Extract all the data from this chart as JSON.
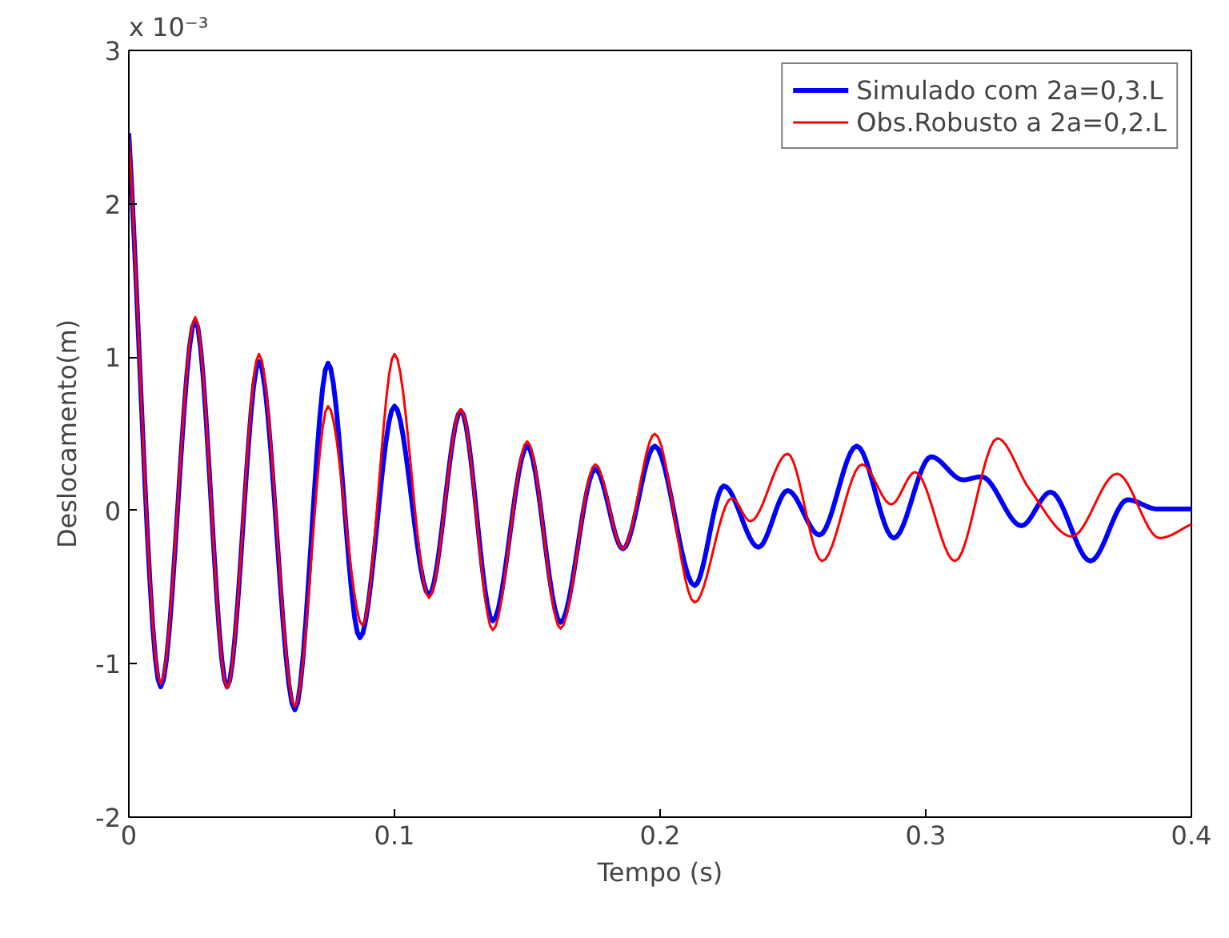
{
  "chart_data": {
    "type": "line",
    "xlabel": "Tempo (s)",
    "ylabel": "Deslocamento(m)",
    "annotations": [
      "x 10⁻³"
    ],
    "xlim": [
      0,
      0.4
    ],
    "ylim": [
      -2,
      3
    ],
    "xticks": [
      0,
      0.1,
      0.2,
      0.3,
      0.4
    ],
    "yticks": [
      -2,
      -1,
      0,
      1,
      2,
      3
    ],
    "grid": false,
    "legend": "top right",
    "line_style": "solid",
    "series": [
      {
        "name": "Simulado com 2a=0,3.L",
        "color": "#0000ff",
        "x": [
          0,
          0.012,
          0.025,
          0.037,
          0.049,
          0.0625,
          0.075,
          0.087,
          0.1,
          0.113,
          0.125,
          0.137,
          0.15,
          0.1625,
          0.1756,
          0.186,
          0.198,
          0.213,
          0.224,
          0.237,
          0.248,
          0.26,
          0.274,
          0.288,
          0.302,
          0.314,
          0.321,
          0.336,
          0.347,
          0.362,
          0.376,
          0.387,
          0.396,
          0.4
        ],
        "values": [
          2.46,
          -1.15,
          1.24,
          -1.15,
          0.97,
          -1.3,
          0.96,
          -0.83,
          0.68,
          -0.55,
          0.65,
          -0.72,
          0.42,
          -0.73,
          0.27,
          -0.25,
          0.42,
          -0.49,
          0.16,
          -0.24,
          0.13,
          -0.16,
          0.42,
          -0.18,
          0.35,
          0.2,
          0.22,
          -0.1,
          0.12,
          -0.33,
          0.07,
          0.01,
          0.01,
          0.01
        ]
      },
      {
        "name": "Obs.Robusto a 2a=0,2.L",
        "color": "#ff0000",
        "x": [
          0,
          0.012,
          0.025,
          0.037,
          0.049,
          0.0625,
          0.075,
          0.088,
          0.1,
          0.113,
          0.125,
          0.137,
          0.15,
          0.1625,
          0.1756,
          0.186,
          0.198,
          0.213,
          0.227,
          0.234,
          0.248,
          0.261,
          0.276,
          0.287,
          0.296,
          0.311,
          0.327,
          0.339,
          0.355,
          0.372,
          0.388,
          0.4
        ],
        "values": [
          2.46,
          -1.13,
          1.26,
          -1.16,
          1.02,
          -1.28,
          0.68,
          -0.75,
          1.02,
          -0.57,
          0.66,
          -0.78,
          0.45,
          -0.77,
          0.3,
          -0.25,
          0.5,
          -0.6,
          0.08,
          -0.07,
          0.37,
          -0.33,
          0.3,
          0.04,
          0.25,
          -0.33,
          0.47,
          0.14,
          -0.17,
          0.24,
          -0.18,
          -0.09
        ]
      }
    ]
  }
}
